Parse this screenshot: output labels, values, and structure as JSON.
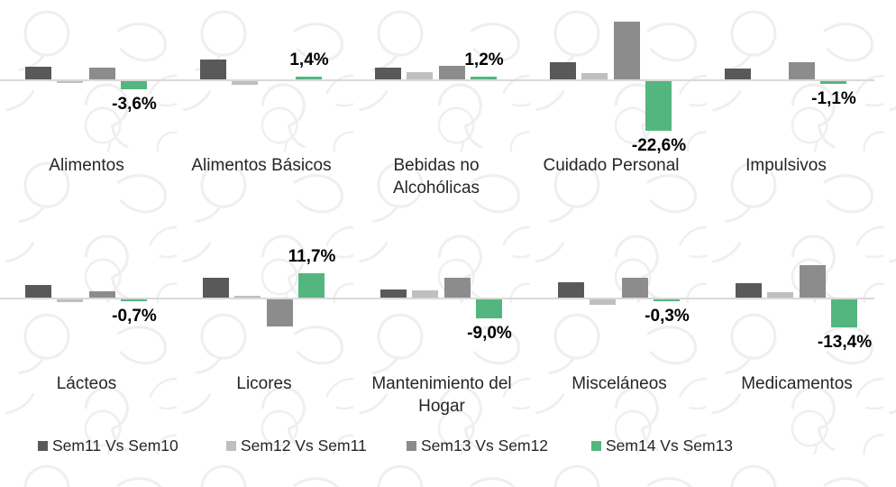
{
  "colors": {
    "axis_line": "#d9d9d9",
    "category_text": "#262626",
    "data_label_text": "#000000",
    "watermark_stroke": "#f0eeee",
    "series_dark_gray": "#595959",
    "series_light_gray": "#bfbfbf",
    "series_medium_gray": "#8c8c8c",
    "series_green": "#54b67f"
  },
  "legend": {
    "items": [
      {
        "label": "Sem11 Vs Sem10",
        "color": "#595959"
      },
      {
        "label": "Sem12 Vs Sem11",
        "color": "#bfbfbf"
      },
      {
        "label": "Sem13 Vs Sem12",
        "color": "#8c8c8c"
      },
      {
        "label": "Sem14 Vs Sem13",
        "color": "#54b67f"
      }
    ]
  },
  "chart_data": [
    {
      "type": "bar",
      "row": "top",
      "title": "",
      "xlabel": "",
      "ylabel": "",
      "gridlines": false,
      "legend_position": "bottom",
      "ylim": [
        -25,
        28
      ],
      "categories": [
        "Alimentos",
        "Alimentos Básicos",
        "Bebidas no Alcohólicas",
        "Cuidado Personal",
        "Impulsivos"
      ],
      "series": [
        {
          "name": "Sem11 Vs Sem10",
          "color": "#595959",
          "values": [
            5.8,
            9.0,
            5.3,
            7.8,
            4.9
          ]
        },
        {
          "name": "Sem12 Vs Sem11",
          "color": "#bfbfbf",
          "values": [
            -0.5,
            -1.5,
            3.2,
            2.9,
            0.0
          ]
        },
        {
          "name": "Sem13 Vs Sem12",
          "color": "#8c8c8c",
          "values": [
            5.2,
            0.0,
            6.2,
            26.5,
            7.8
          ]
        },
        {
          "name": "Sem14 Vs Sem13",
          "color": "#54b67f",
          "values": [
            -3.6,
            1.4,
            1.2,
            -22.6,
            -1.1
          ],
          "data_labels": [
            "-3,6%",
            "1,4%",
            "1,2%",
            "-22,6%",
            "-1,1%"
          ]
        }
      ]
    },
    {
      "type": "bar",
      "row": "bottom",
      "title": "",
      "xlabel": "",
      "ylabel": "",
      "gridlines": false,
      "legend_position": "bottom",
      "ylim": [
        -15,
        16
      ],
      "categories": [
        "Lácteos",
        "Licores",
        "Mantenimiento del Hogar",
        "Misceláneos",
        "Medicamentos"
      ],
      "series": [
        {
          "name": "Sem11 Vs Sem10",
          "color": "#595959",
          "values": [
            6.1,
            9.5,
            4.0,
            7.4,
            7.0
          ]
        },
        {
          "name": "Sem12 Vs Sem11",
          "color": "#bfbfbf",
          "values": [
            -1.2,
            0.7,
            3.6,
            -2.6,
            2.7
          ]
        },
        {
          "name": "Sem13 Vs Sem12",
          "color": "#8c8c8c",
          "values": [
            3.0,
            -13.0,
            9.6,
            9.6,
            15.6
          ]
        },
        {
          "name": "Sem14 Vs Sem13",
          "color": "#54b67f",
          "values": [
            -0.7,
            11.7,
            -9.0,
            -0.3,
            -13.4
          ],
          "data_labels": [
            "-0,7%",
            "11,7%",
            "-9,0%",
            "-0,3%",
            "-13,4%"
          ]
        }
      ]
    }
  ]
}
